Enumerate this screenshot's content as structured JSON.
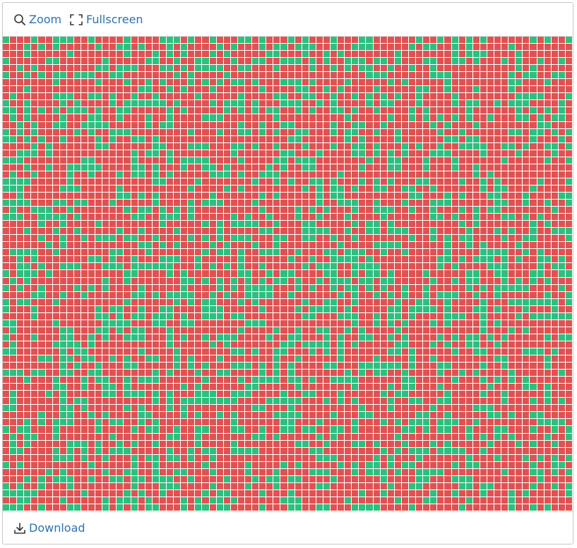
{
  "toolbar": {
    "zoom_label": "Zoom",
    "zoom_icon": "magnifier-icon",
    "fullscreen_label": "Fullscreen",
    "fullscreen_icon": "fullscreen-corners-icon"
  },
  "grid": {
    "rows": 67,
    "cols": 80,
    "colors": {
      "on": "#2ebf7f",
      "off": "#e05252",
      "gap": "#ffffff"
    },
    "pattern": "random binary cells, roughly one third green",
    "seed": 20240607,
    "on_ratio": 0.33
  },
  "footer": {
    "download_label": "Download",
    "download_icon": "download-icon"
  },
  "colors": {
    "link": "#2b72b3",
    "border": "#c8c8c8"
  }
}
